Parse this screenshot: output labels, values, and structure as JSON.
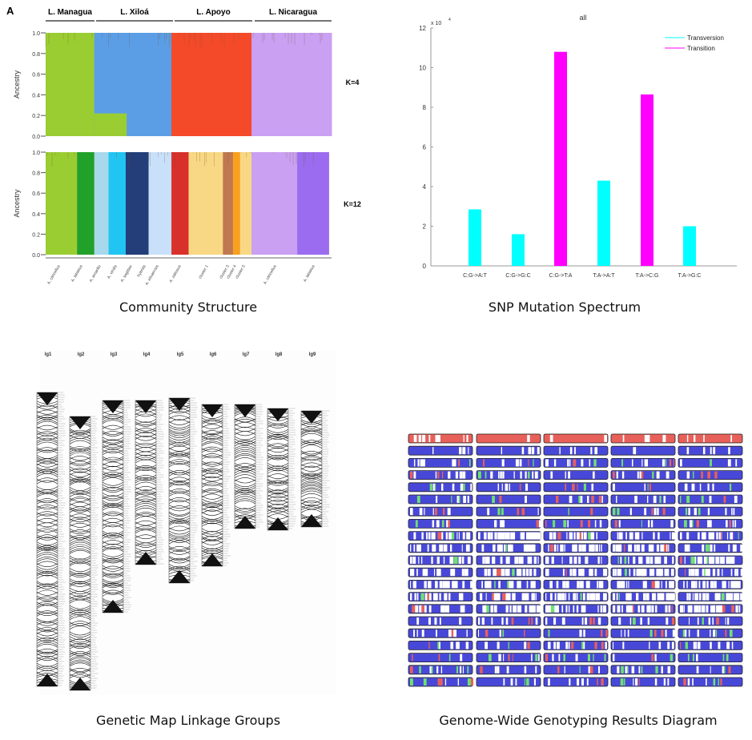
{
  "chart_data": [
    {
      "type": "bar",
      "panel_letter": "A",
      "caption": "Community Structure",
      "ylabel": "Ancestry",
      "ylim": [
        0,
        1
      ],
      "yticks": [
        "0.0",
        "0.2",
        "0.4",
        "0.6",
        "0.8",
        "1.0"
      ],
      "groups": [
        "L. Managua",
        "L. Xiloá",
        "L. Apoyo",
        "L. Nicaragua"
      ],
      "panels": [
        {
          "label": "K=4",
          "blocks": [
            {
              "color": "#9acd32",
              "share": 0.17
            },
            {
              "color": "#5b9ee6",
              "share": 0.27,
              "lower_color": "#9acd32",
              "lower_value": 0.22,
              "lower_share": 0.42
            },
            {
              "color": "#f44a2a",
              "share": 0.28
            },
            {
              "color": "#c9a0f2",
              "share": 0.28
            }
          ]
        },
        {
          "label": "K=12",
          "blocks": [
            {
              "color": "#9acd32",
              "share": 0.11
            },
            {
              "color": "#22a12a",
              "share": 0.06
            },
            {
              "color": "#a8d8ec",
              "share": 0.05
            },
            {
              "color": "#22c4f2",
              "share": 0.06
            },
            {
              "color": "#233e78",
              "share": 0.08
            },
            {
              "color": "#c8e0fa",
              "share": 0.08
            },
            {
              "color": "#d8302a",
              "share": 0.06
            },
            {
              "color": "#f8d884",
              "share": 0.12
            },
            {
              "color": "#c07850",
              "share": 0.035
            },
            {
              "color": "#f8a020",
              "share": 0.025
            },
            {
              "color": "#f8d884",
              "share": 0.04
            },
            {
              "color": "#c9a0f2",
              "share": 0.16
            },
            {
              "color": "#9b6cf0",
              "share": 0.11
            }
          ]
        }
      ],
      "species_labels": [
        "A. citrinellus",
        "A. labiatus",
        "A. amarillo",
        "A. viridis",
        "A. sagittae",
        "hybrids",
        "A. xiloaensis",
        "A. zaliosus",
        "cluster 1",
        "cluster 3",
        "cluster 4",
        "cluster 5",
        "A. citrinellus",
        "A. labiatus"
      ]
    },
    {
      "type": "bar",
      "title": "all",
      "caption": "SNP Mutation Spectrum",
      "y_multiplier": "x 10",
      "y_exponent": "4",
      "ylim": [
        0,
        12
      ],
      "yticks": [
        "0",
        "2",
        "4",
        "6",
        "8",
        "10",
        "12"
      ],
      "categories": [
        "C:G->A:T",
        "C:G->G:C",
        "C:G->T:A",
        "T:A->A:T",
        "T:A->C:G",
        "T:A->G:C"
      ],
      "values": [
        2.85,
        1.6,
        10.8,
        4.3,
        8.65,
        2.0
      ],
      "series_of_bar": [
        "Transversion",
        "Transversion",
        "Transition",
        "Transversion",
        "Transition",
        "Transversion"
      ],
      "legend": [
        {
          "name": "Transversion",
          "color": "#00ffff"
        },
        {
          "name": "Transition",
          "color": "#ff00ff"
        }
      ],
      "legend_placement": "top-right"
    },
    {
      "type": "diagram",
      "caption": "Genetic Map Linkage Groups",
      "groups": [
        "lg1",
        "lg2",
        "lg3",
        "lg4",
        "lg5",
        "lg6",
        "lg7",
        "lg8",
        "lg9"
      ]
    },
    {
      "type": "heatmap",
      "caption": "Genome-Wide Genotyping Results Diagram",
      "colors": {
        "parent_a": "#e8605a",
        "parent_b": "#4848d8",
        "heterozygous": "#70e070",
        "missing": "#ffffff"
      }
    }
  ]
}
